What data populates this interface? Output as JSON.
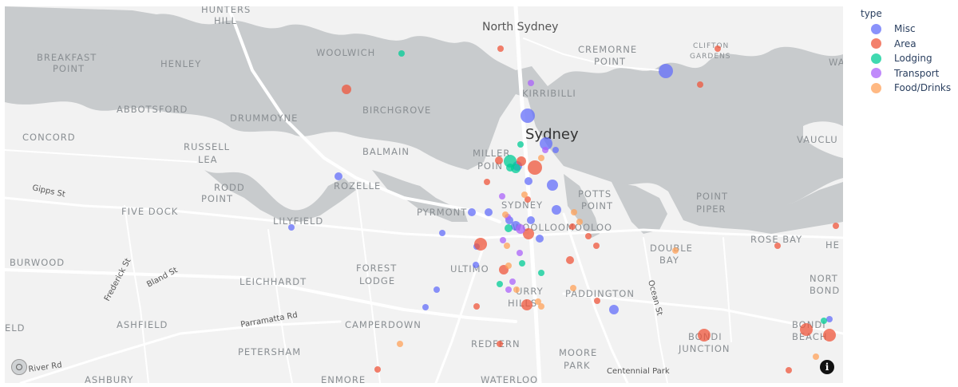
{
  "legend": {
    "title": "type",
    "items": [
      {
        "label": "Misc",
        "color": "#636efa"
      },
      {
        "label": "Area",
        "color": "#ef553b"
      },
      {
        "label": "Lodging",
        "color": "#00cc96"
      },
      {
        "label": "Transport",
        "color": "#ab63fa"
      },
      {
        "label": "Food/Drinks",
        "color": "#ffa15a"
      }
    ]
  },
  "map": {
    "water_color": "#c8cbcd",
    "land_color": "#f2f2f2",
    "road_color": "#ffffff",
    "info_label": "i",
    "labels": {
      "city": "Sydney",
      "north_sydney": "North Sydney",
      "hunters_hill_1": "HUNTERS",
      "hunters_hill_2": "HILL",
      "woolwich": "WOOLWICH",
      "cremorne_1": "CREMORNE",
      "cremorne_2": "POINT",
      "clifton_1": "CLIFTON",
      "clifton_2": "GARDENS",
      "breakfast_1": "BREAKFAST",
      "breakfast_2": "POINT",
      "henley": "HENLEY",
      "kirribilli": "KIRRIBILLI",
      "abbotsford": "ABBOTSFORD",
      "drummoyne": "DRUMMOYNE",
      "birchgrove": "BIRCHGROVE",
      "concord": "CONCORD",
      "russell_1": "RUSSELL",
      "russell_2": "LEA",
      "balmain": "BALMAIN",
      "millers_1": "MILLER",
      "millers_2": "POIN",
      "vaucluse": "VAUCLU",
      "rozelle": "ROZELLE",
      "rodd_1": "RODD",
      "rodd_2": "POINT",
      "potts_1": "POTTS",
      "potts_2": "POINT",
      "point_piper_1": "POINT",
      "point_piper_2": "PIPER",
      "five_dock": "FIVE DOCK",
      "lilyfield": "LILYFIELD",
      "pyrmont": "PYRMONT",
      "sydney_small": "SYDNEY",
      "woolloomooloo": "WOOLLOOMOOLOO",
      "rose_bay": "ROSE BAY",
      "hei": "HE",
      "burwood": "BURWOOD",
      "forest_1": "FOREST",
      "forest_2": "LODGE",
      "ultimo": "ULTIMO",
      "double_1": "DOUBLE",
      "double_2": "BAY",
      "north_bondi_1": "NORT",
      "north_bondi_2": "BOND",
      "leichhardt": "LEICHHARDT",
      "surry_1": "URRY",
      "surry_2": "HILLS",
      "paddington": "PADDINGTON",
      "ashfield": "ASHFIELD",
      "camperdown": "CAMPERDOWN",
      "eld": "ELD",
      "bondi_beach_1": "BONDI",
      "bondi_beach_2": "BEACH",
      "bondi_junction_1": "BONDI",
      "bondi_junction_2": "JUNCTION",
      "petersham": "PETERSHAM",
      "redfern": "REDFERN",
      "moore_1": "MOORE",
      "moore_2": "PARK",
      "ashbury": "ASHBURY",
      "enmore": "ENMORE",
      "waterloo": "WATERLOO",
      "wa": "WA"
    },
    "streets": {
      "gipps": "Gipps St",
      "frederick": "Frederick St",
      "bland": "Bland St",
      "parramatta": "Parramatta Rd",
      "ocean": "Ocean St",
      "river": "River Rd",
      "centennial": "Centennial Park"
    }
  }
}
